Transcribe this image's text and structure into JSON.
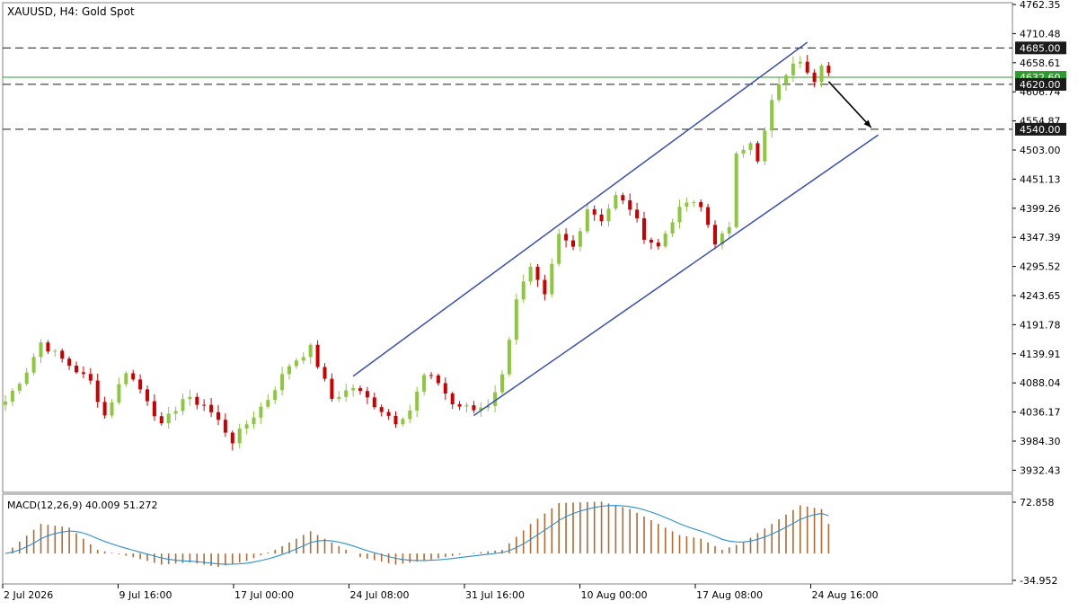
{
  "header": {
    "symbol": "XAUUSD",
    "timeframe": "H4",
    "description": "Gold Spot"
  },
  "colors": {
    "bull": "#8dc63f",
    "bear": "#cc0000",
    "wick": "#555555",
    "channel": "#3a4fb4",
    "level_line": "#1b1b1b",
    "current_price_line": "#2e9b2e",
    "price_tag_bg": "#2e9b2e",
    "level_tag_bg": "#1b1b1b",
    "macd_hist": "#b06a34",
    "macd_signal": "#2a8fd0",
    "frame": "#808080"
  },
  "price_axis": {
    "ticks": [
      "4762.35",
      "4710.48",
      "4658.61",
      "4606.74",
      "4554.87",
      "4503.00",
      "4451.13",
      "4399.26",
      "4347.39",
      "4295.52",
      "4243.65",
      "4191.78",
      "4139.91",
      "4088.04",
      "4036.17",
      "3984.30",
      "3932.43"
    ]
  },
  "time_axis": {
    "labels": [
      "2 Jul 2026",
      "9 Jul 16:00",
      "17 Jul 00:00",
      "24 Jul 08:00",
      "31 Jul 16:00",
      "10 Aug 00:00",
      "17 Aug 08:00",
      "24 Aug 16:00"
    ]
  },
  "macd": {
    "label": "MACD(12,26,9) 40.009 51.272",
    "axis_ticks": [
      "72.858",
      "-34.952"
    ]
  },
  "chart_data": {
    "type": "candlestick",
    "symbol": "XAUUSD",
    "timeframe": "H4",
    "title": "XAUUSD, H4: Gold Spot",
    "ylim": [
      3900,
      4762.35
    ],
    "levels": [
      {
        "label": "4685.00",
        "price": 4685.0,
        "style": "dashed"
      },
      {
        "label": "4620.00",
        "price": 4620.0,
        "style": "dashed"
      },
      {
        "label": "4540.00",
        "price": 4540.0,
        "style": "dashed"
      }
    ],
    "current_price": {
      "label": "4632.60",
      "price": 4632.6
    },
    "channel": {
      "upper": [
        {
          "bar": 49,
          "price": 4100
        },
        {
          "bar": 113,
          "price": 4695
        }
      ],
      "lower": [
        {
          "bar": 66,
          "price": 4030
        },
        {
          "bar": 123,
          "price": 4530
        }
      ]
    },
    "projection_arrow": {
      "from": {
        "bar": 116,
        "price": 4625
      },
      "to": {
        "bar": 122,
        "price": 4543
      }
    },
    "close_anchors": [
      [
        0,
        4055
      ],
      [
        3,
        4110
      ],
      [
        5,
        4160
      ],
      [
        8,
        4130
      ],
      [
        12,
        4090
      ],
      [
        14,
        4030
      ],
      [
        17,
        4110
      ],
      [
        20,
        4060
      ],
      [
        22,
        4010
      ],
      [
        25,
        4060
      ],
      [
        28,
        4050
      ],
      [
        30,
        4020
      ],
      [
        32,
        3985
      ],
      [
        35,
        4030
      ],
      [
        37,
        4060
      ],
      [
        40,
        4120
      ],
      [
        43,
        4150
      ],
      [
        46,
        4060
      ],
      [
        49,
        4080
      ],
      [
        52,
        4050
      ],
      [
        55,
        4020
      ],
      [
        57,
        4040
      ],
      [
        59,
        4100
      ],
      [
        61,
        4090
      ],
      [
        63,
        4050
      ],
      [
        66,
        4040
      ],
      [
        68,
        4050
      ],
      [
        70,
        4100
      ],
      [
        72,
        4240
      ],
      [
        74,
        4290
      ],
      [
        76,
        4240
      ],
      [
        78,
        4350
      ],
      [
        80,
        4330
      ],
      [
        82,
        4400
      ],
      [
        84,
        4380
      ],
      [
        86,
        4420
      ],
      [
        88,
        4400
      ],
      [
        90,
        4350
      ],
      [
        92,
        4330
      ],
      [
        94,
        4380
      ],
      [
        96,
        4410
      ],
      [
        98,
        4400
      ],
      [
        100,
        4340
      ],
      [
        102,
        4360
      ],
      [
        103,
        4500
      ],
      [
        105,
        4520
      ],
      [
        106,
        4480
      ],
      [
        108,
        4590
      ],
      [
        110,
        4640
      ],
      [
        112,
        4665
      ],
      [
        114,
        4630
      ],
      [
        115,
        4660
      ],
      [
        116,
        4640
      ]
    ],
    "macd_anchors": [
      [
        0,
        0
      ],
      [
        5,
        40
      ],
      [
        9,
        35
      ],
      [
        13,
        5
      ],
      [
        18,
        -5
      ],
      [
        22,
        -15
      ],
      [
        26,
        -12
      ],
      [
        30,
        -18
      ],
      [
        34,
        -10
      ],
      [
        38,
        5
      ],
      [
        43,
        30
      ],
      [
        47,
        10
      ],
      [
        50,
        -5
      ],
      [
        55,
        -15
      ],
      [
        60,
        -8
      ],
      [
        65,
        0
      ],
      [
        70,
        5
      ],
      [
        74,
        40
      ],
      [
        78,
        68
      ],
      [
        84,
        70
      ],
      [
        88,
        60
      ],
      [
        92,
        40
      ],
      [
        95,
        25
      ],
      [
        98,
        20
      ],
      [
        101,
        5
      ],
      [
        104,
        15
      ],
      [
        108,
        40
      ],
      [
        112,
        65
      ],
      [
        115,
        60
      ],
      [
        116,
        40
      ]
    ],
    "macd_value": 40.009,
    "signal_value": 51.272,
    "macd_range": [
      -34.952,
      72.858
    ]
  }
}
